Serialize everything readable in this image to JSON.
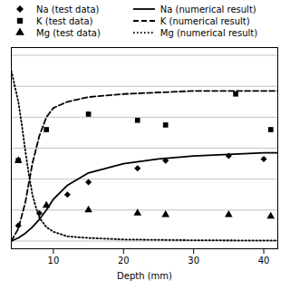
{
  "chart_data": {
    "type": "line",
    "xlabel": "Depth (mm)",
    "xlim": [
      4,
      42
    ],
    "xticks": [
      10,
      20,
      30,
      40
    ],
    "ylim": [
      -0.05,
      1.25
    ],
    "yticks": [
      0,
      0.2,
      0.4,
      0.6,
      0.8,
      1.0,
      1.2
    ],
    "grid": true,
    "tick_labels": "x",
    "legend": "top",
    "series": [
      {
        "name": "Na (test data)",
        "type": "scatter",
        "marker": "diamond",
        "color": "#000000",
        "x": [
          5,
          8,
          12,
          15,
          22,
          26,
          35,
          40
        ],
        "values": [
          0.1,
          0.18,
          0.3,
          0.38,
          0.47,
          0.52,
          0.55,
          0.53
        ]
      },
      {
        "name": "K (test data)",
        "type": "scatter",
        "marker": "square",
        "color": "#000000",
        "x": [
          5,
          9,
          15,
          22,
          26,
          36,
          41
        ],
        "values": [
          0.52,
          0.72,
          0.82,
          0.78,
          0.75,
          0.95,
          0.72
        ]
      },
      {
        "name": "Mg (test data)",
        "type": "scatter",
        "marker": "triangle",
        "color": "#000000",
        "x": [
          5,
          9,
          15,
          22,
          26,
          35,
          41
        ],
        "values": [
          0.52,
          0.23,
          0.2,
          0.18,
          0.17,
          0.17,
          0.16
        ]
      },
      {
        "name": "Na (numerical result)",
        "type": "line",
        "line_style": "solid",
        "color": "#000000",
        "x": [
          4,
          5,
          6,
          7,
          8,
          9,
          10,
          12,
          15,
          20,
          25,
          30,
          35,
          40,
          42
        ],
        "values": [
          0.0,
          0.02,
          0.05,
          0.09,
          0.14,
          0.2,
          0.27,
          0.36,
          0.44,
          0.5,
          0.53,
          0.55,
          0.56,
          0.57,
          0.57
        ]
      },
      {
        "name": "K (numerical result)",
        "type": "line",
        "line_style": "dashed",
        "color": "#000000",
        "x": [
          4,
          5,
          6,
          7,
          8,
          9,
          10,
          12,
          15,
          20,
          25,
          30,
          35,
          40,
          42
        ],
        "values": [
          0.0,
          0.08,
          0.25,
          0.5,
          0.68,
          0.8,
          0.86,
          0.9,
          0.93,
          0.95,
          0.96,
          0.97,
          0.97,
          0.97,
          0.97
        ]
      },
      {
        "name": "Mg (numerical result)",
        "type": "line",
        "line_style": "dotted",
        "color": "#000000",
        "x": [
          4,
          4.5,
          5,
          5.5,
          6,
          6.5,
          7,
          7.5,
          8,
          9,
          10,
          12,
          15,
          20,
          30,
          42
        ],
        "values": [
          1.1,
          1.0,
          0.9,
          0.75,
          0.58,
          0.43,
          0.3,
          0.22,
          0.15,
          0.09,
          0.06,
          0.03,
          0.02,
          0.01,
          0.005,
          0.003
        ]
      }
    ]
  }
}
